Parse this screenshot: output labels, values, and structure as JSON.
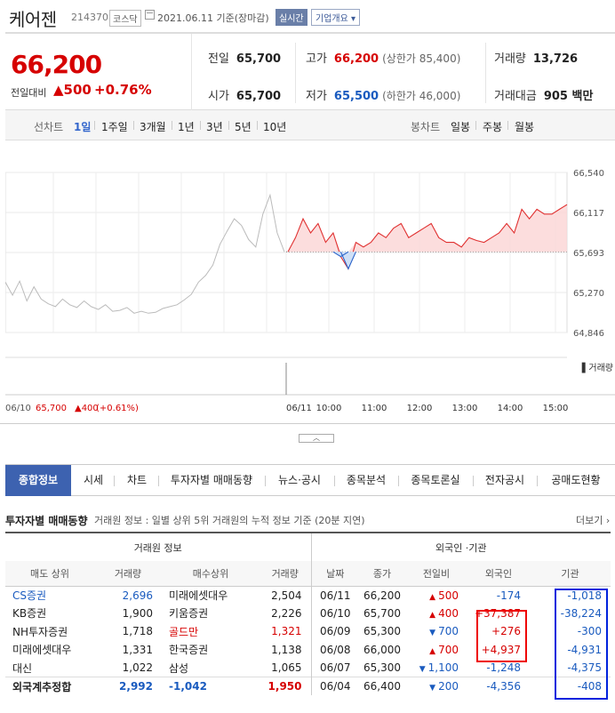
{
  "header": {
    "company": "케어젠",
    "code": "214370",
    "market": "코스닥",
    "date": "2021.06.11 기준(장마감)",
    "realtime": "실시간",
    "corp_button": "기업개요 ▾"
  },
  "quote": {
    "price": "66,200",
    "change_label": "전일대비",
    "change": "▲500",
    "change_pct": "+0.76%",
    "prev_label": "전일",
    "prev": "65,700",
    "high_label": "고가",
    "high": "66,200",
    "upper_limit": "(상한가 85,400)",
    "volume_label": "거래량",
    "volume": "13,726",
    "open_label": "시가",
    "open": "65,700",
    "low_label": "저가",
    "low": "65,500",
    "lower_limit": "(하한가 46,000)",
    "amount_label": "거래대금",
    "amount": "905 백만"
  },
  "period": {
    "line_label": "선차트",
    "line_items": [
      "1일",
      "1주일",
      "3개월",
      "1년",
      "3년",
      "5년",
      "10년"
    ],
    "active": "1일",
    "candle_label": "봉차트",
    "candle_items": [
      "일봉",
      "주봉",
      "월봉"
    ]
  },
  "chart_data": {
    "type": "line",
    "y_ticks": [
      "66,540",
      "66,117",
      "65,693",
      "65,270",
      "64,846"
    ],
    "ylim": [
      64846,
      66540
    ],
    "base_price": 65700,
    "x_ticks": [
      "06/11",
      "10:00",
      "11:00",
      "12:00",
      "13:00",
      "14:00",
      "15:00"
    ],
    "volume_label": "거래량",
    "prev_day": {
      "date": "06/10",
      "price": "65,700",
      "change": "▲400",
      "change_pct": "(+0.61%)"
    },
    "series": [
      {
        "values": [
          65380,
          65240,
          65390,
          65180,
          65330,
          65200,
          65150,
          65120,
          65200,
          65140,
          65110,
          65180,
          65120,
          65090,
          65140,
          65070,
          65080,
          65110,
          65050,
          65070,
          65050,
          65060,
          65100,
          65120,
          65140,
          65190,
          65250,
          65380,
          65450,
          65560,
          65780,
          65920,
          66050,
          65980,
          65830,
          65750,
          66100,
          66300,
          65900,
          65700
        ]
      },
      {
        "values": [
          65700,
          65850,
          66050,
          65900,
          66000,
          65800,
          65900,
          65650,
          65520,
          65800,
          65750,
          65800,
          65900,
          65850,
          65950,
          66000,
          65850,
          65900,
          65950,
          66000,
          65850,
          65800,
          65800,
          65750,
          65850,
          65820,
          65800,
          65850,
          65900,
          66000,
          65900,
          66150,
          66050,
          66150,
          66100,
          66100,
          66150,
          66200
        ]
      }
    ]
  },
  "toggle": "︿",
  "tabs": [
    "종합정보",
    "시세",
    "차트",
    "투자자별 매매동향",
    "뉴스·공시",
    "종목분석",
    "종목토론실",
    "전자공시",
    "공매도현황"
  ],
  "investor": {
    "title": "투자자별 매매동향",
    "note": "거래원 정보 : 일별 상위 5위 거래원의 누적 정보 기준 (20분 지연)",
    "more": "더보기 ›",
    "broker_header": "거래원 정보",
    "foreign_header": "외국인 ·기관",
    "cols": [
      "매도 상위",
      "거래량",
      "매수상위",
      "거래량",
      "날짜",
      "종가",
      "전일비",
      "외국인",
      "기관"
    ],
    "sell": [
      {
        "name": "CS증권",
        "qty": "2,696"
      },
      {
        "name": "KB증권",
        "qty": "1,900"
      },
      {
        "name": "NH투자증권",
        "qty": "1,718"
      },
      {
        "name": "미래에셋대우",
        "qty": "1,331"
      },
      {
        "name": "대신",
        "qty": "1,022"
      }
    ],
    "buy": [
      {
        "name": "미래에셋대우",
        "qty": "2,504"
      },
      {
        "name": "키움증권",
        "qty": "2,226"
      },
      {
        "name": "골드만",
        "qty": "1,321"
      },
      {
        "name": "한국증권",
        "qty": "1,138"
      },
      {
        "name": "삼성",
        "qty": "1,065"
      }
    ],
    "sum_label": "외국계추정합",
    "sum_sell": "2,992",
    "sum_net": "-1,042",
    "sum_buy": "1,950",
    "daily": [
      {
        "date": "06/11",
        "close": "66,200",
        "diff": "500",
        "dir": "up",
        "foreign": "-174",
        "inst": "-1,018"
      },
      {
        "date": "06/10",
        "close": "65,700",
        "diff": "400",
        "dir": "up",
        "foreign": "+37,387",
        "inst": "-38,224"
      },
      {
        "date": "06/09",
        "close": "65,300",
        "diff": "700",
        "dir": "down",
        "foreign": "+276",
        "inst": "-300"
      },
      {
        "date": "06/08",
        "close": "66,000",
        "diff": "700",
        "dir": "up",
        "foreign": "+4,937",
        "inst": "-4,931"
      },
      {
        "date": "06/07",
        "close": "65,300",
        "diff": "1,100",
        "dir": "down",
        "foreign": "-1,248",
        "inst": "-4,375"
      },
      {
        "date": "06/04",
        "close": "66,400",
        "diff": "200",
        "dir": "down",
        "foreign": "-4,356",
        "inst": "-408"
      }
    ]
  }
}
